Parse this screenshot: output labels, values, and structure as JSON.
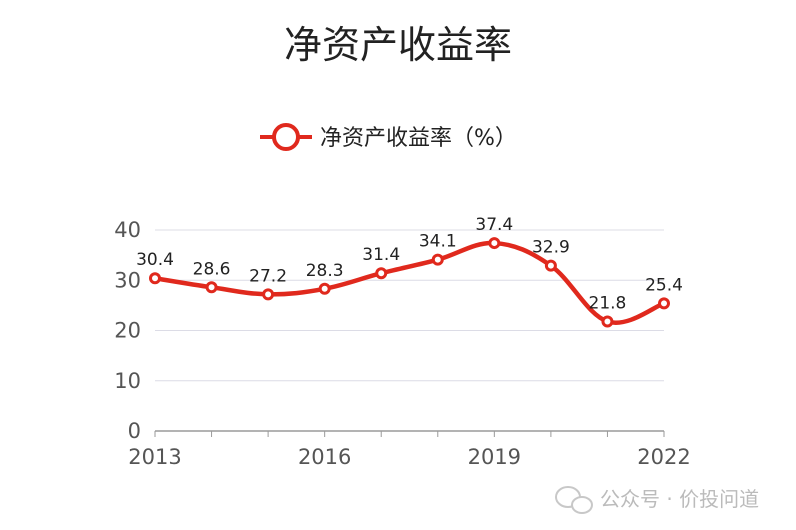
{
  "chart_data": {
    "type": "line",
    "title": "净资产收益率",
    "legend": {
      "placement": "top-center",
      "entries": [
        "净资产收益率（%）"
      ]
    },
    "x": [
      2013,
      2014,
      2015,
      2016,
      2017,
      2018,
      2019,
      2020,
      2021,
      2022
    ],
    "x_tick_labels": [
      "2013",
      "2016",
      "2019",
      "2022"
    ],
    "series": [
      {
        "name": "净资产收益率（%）",
        "values": [
          30.4,
          28.6,
          27.2,
          28.3,
          31.4,
          34.1,
          37.4,
          32.9,
          21.8,
          25.4
        ],
        "labels": [
          "30.4",
          "28.6",
          "27.2",
          "28.3",
          "31.4",
          "34.1",
          "37.4",
          "32.9",
          "21.8",
          "25.4"
        ],
        "color": "#e0291d"
      }
    ],
    "ylim": [
      0,
      40
    ],
    "y_ticks": [
      0,
      10,
      20,
      30,
      40
    ],
    "y_tick_labels": [
      "0",
      "10",
      "20",
      "30",
      "40"
    ],
    "grid": true,
    "xlabel": "",
    "ylabel": ""
  },
  "watermark": {
    "text": "公众号 · 价投问道",
    "icon": "wechat-icon"
  }
}
